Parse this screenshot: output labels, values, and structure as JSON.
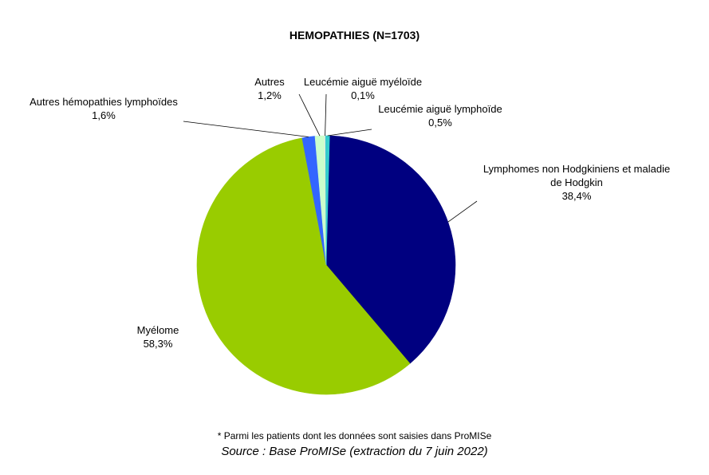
{
  "chart_data": {
    "type": "pie",
    "title": "HEMOPATHIES (N=1703)",
    "slices": [
      {
        "label_lines": [
          "Lymphomes non Hodgkiniens et maladie",
          "de Hodgkin"
        ],
        "value_text": "38,4%",
        "value": 38.4,
        "color": "#000080"
      },
      {
        "label_lines": [
          "Myélome"
        ],
        "value_text": "58,3%",
        "value": 58.3,
        "color": "#99CC00"
      },
      {
        "label_lines": [
          "Autres hémopathies lymphoïdes"
        ],
        "value_text": "1,6%",
        "value": 1.6,
        "color": "#3366FF"
      },
      {
        "label_lines": [
          "Autres"
        ],
        "value_text": "1,2%",
        "value": 1.2,
        "color": "#CCFFCC"
      },
      {
        "label_lines": [
          "Leucémie aiguë myéloïde"
        ],
        "value_text": "0,1%",
        "value": 0.1,
        "color": "#FFFFFF"
      },
      {
        "label_lines": [
          "Leucémie aiguë lymphoïde"
        ],
        "value_text": "0,5%",
        "value": 0.5,
        "color": "#33CCCC"
      }
    ],
    "legend": "none"
  },
  "footnote": "* Parmi les patients dont les données sont saisies dans ProMISe",
  "source": "Source : Base ProMISe (extraction du 7 juin 2022)"
}
